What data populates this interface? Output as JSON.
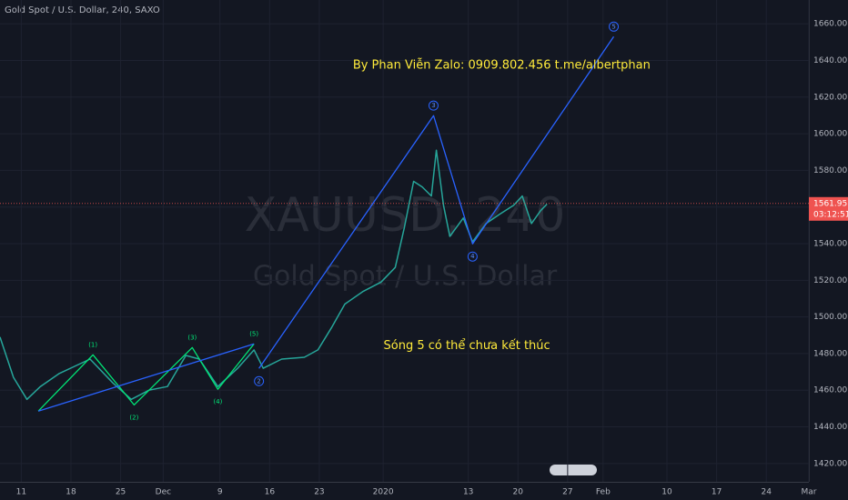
{
  "chart_data": {
    "type": "line",
    "title": "Gold Spot / U.S. Dollar, 240, SAXO",
    "watermark": "XAUUSD, 240",
    "watermark_subtitle": "Gold Spot / U.S. Dollar",
    "x": [
      8,
      9.9,
      11.8,
      13.7,
      16.3,
      20.7,
      23.9,
      26.5,
      29,
      31.6,
      34.2,
      36.1,
      38.7,
      41.5,
      43.8,
      45.1,
      47.7,
      50.9,
      52.8,
      54.7,
      56.6,
      59.2,
      61.7,
      63.7,
      65,
      66.3,
      67.5,
      68.8,
      69.5,
      70.5,
      71.4,
      73.3,
      74.6,
      76.5,
      78.4,
      80.4,
      81.6,
      82.9,
      84.2,
      85.1
    ],
    "series": [
      {
        "color": "#26a69a",
        "values": [
          1489,
          1467,
          1455,
          1462,
          1469,
          1477,
          1464,
          1455,
          1460,
          1462,
          1479,
          1477,
          1462,
          1472,
          1482,
          1472,
          1477,
          1478,
          1482,
          1494,
          1507,
          1514,
          1519,
          1527,
          1549,
          1574,
          1571,
          1566,
          1591,
          1561,
          1544,
          1554,
          1541,
          1551,
          1556,
          1561,
          1566,
          1551,
          1558,
          1561.6
        ]
      }
    ],
    "waves": [
      {
        "color": "#00e676",
        "x": [
          13.4,
          21.1,
          26.9,
          35.1,
          38.7,
          43.8
        ],
        "values": [
          1448.6,
          1479.3,
          1452,
          1483.3,
          1460.5,
          1485.3
        ],
        "labels": [
          null,
          "(1)",
          "(2)",
          "(3)",
          "(4)",
          "(5)"
        ]
      },
      {
        "color": "#2962ff",
        "x": [
          13.4,
          43.8
        ],
        "values": [
          1448.6,
          1485.3
        ],
        "labels": [
          null,
          null
        ]
      },
      {
        "color": "#2962ff",
        "x": [
          44.5,
          69.1,
          74.6,
          94.5
        ],
        "values": [
          1471.9,
          1609.9,
          1539.9,
          1653
        ],
        "labels": [
          "2",
          "3",
          "4",
          "5"
        ]
      }
    ],
    "last_price": 1561.95,
    "countdown": "03:12:51",
    "annotations": [
      {
        "text": "By Phan Viễn Zalo: 0909.802.456 t.me/albertphan",
        "x": 78.7,
        "y": 1637.2,
        "color": "#ffeb3b"
      },
      {
        "text": "Sóng 5 có thể chưa kết thúc",
        "x": 73.8,
        "y": 1484.3,
        "color": "#ffeb3b"
      }
    ],
    "xlim": [
      8,
      122
    ],
    "ylim": [
      1410,
      1673
    ],
    "xticks": [
      {
        "value": 11,
        "label": "11"
      },
      {
        "value": 18,
        "label": "18"
      },
      {
        "value": 25,
        "label": "25"
      },
      {
        "value": 31,
        "label": "Dec"
      },
      {
        "value": 39,
        "label": "9"
      },
      {
        "value": 46,
        "label": "16"
      },
      {
        "value": 53,
        "label": "23"
      },
      {
        "value": 62,
        "label": "2020"
      },
      {
        "value": 74,
        "label": "13"
      },
      {
        "value": 81,
        "label": "20"
      },
      {
        "value": 88,
        "label": "27"
      },
      {
        "value": 93,
        "label": "Feb"
      },
      {
        "value": 102,
        "label": "10"
      },
      {
        "value": 109,
        "label": "17"
      },
      {
        "value": 116,
        "label": "24"
      },
      {
        "value": 122,
        "label": "Mar"
      }
    ],
    "yticks": [
      {
        "value": 1420,
        "label": "1420.00"
      },
      {
        "value": 1440,
        "label": "1440.00"
      },
      {
        "value": 1460,
        "label": "1460.00"
      },
      {
        "value": 1480,
        "label": "1480.00"
      },
      {
        "value": 1500,
        "label": "1500.00"
      },
      {
        "value": 1520,
        "label": "1520.00"
      },
      {
        "value": 1540,
        "label": "1540.00"
      },
      {
        "value": 1560,
        "label": "1560.00"
      },
      {
        "value": 1580,
        "label": "1580.00"
      },
      {
        "value": 1600,
        "label": "1600.00"
      },
      {
        "value": 1620,
        "label": "1620.00"
      },
      {
        "value": 1640,
        "label": "1640.00"
      },
      {
        "value": 1660,
        "label": "1660.00"
      }
    ],
    "grid": true
  }
}
